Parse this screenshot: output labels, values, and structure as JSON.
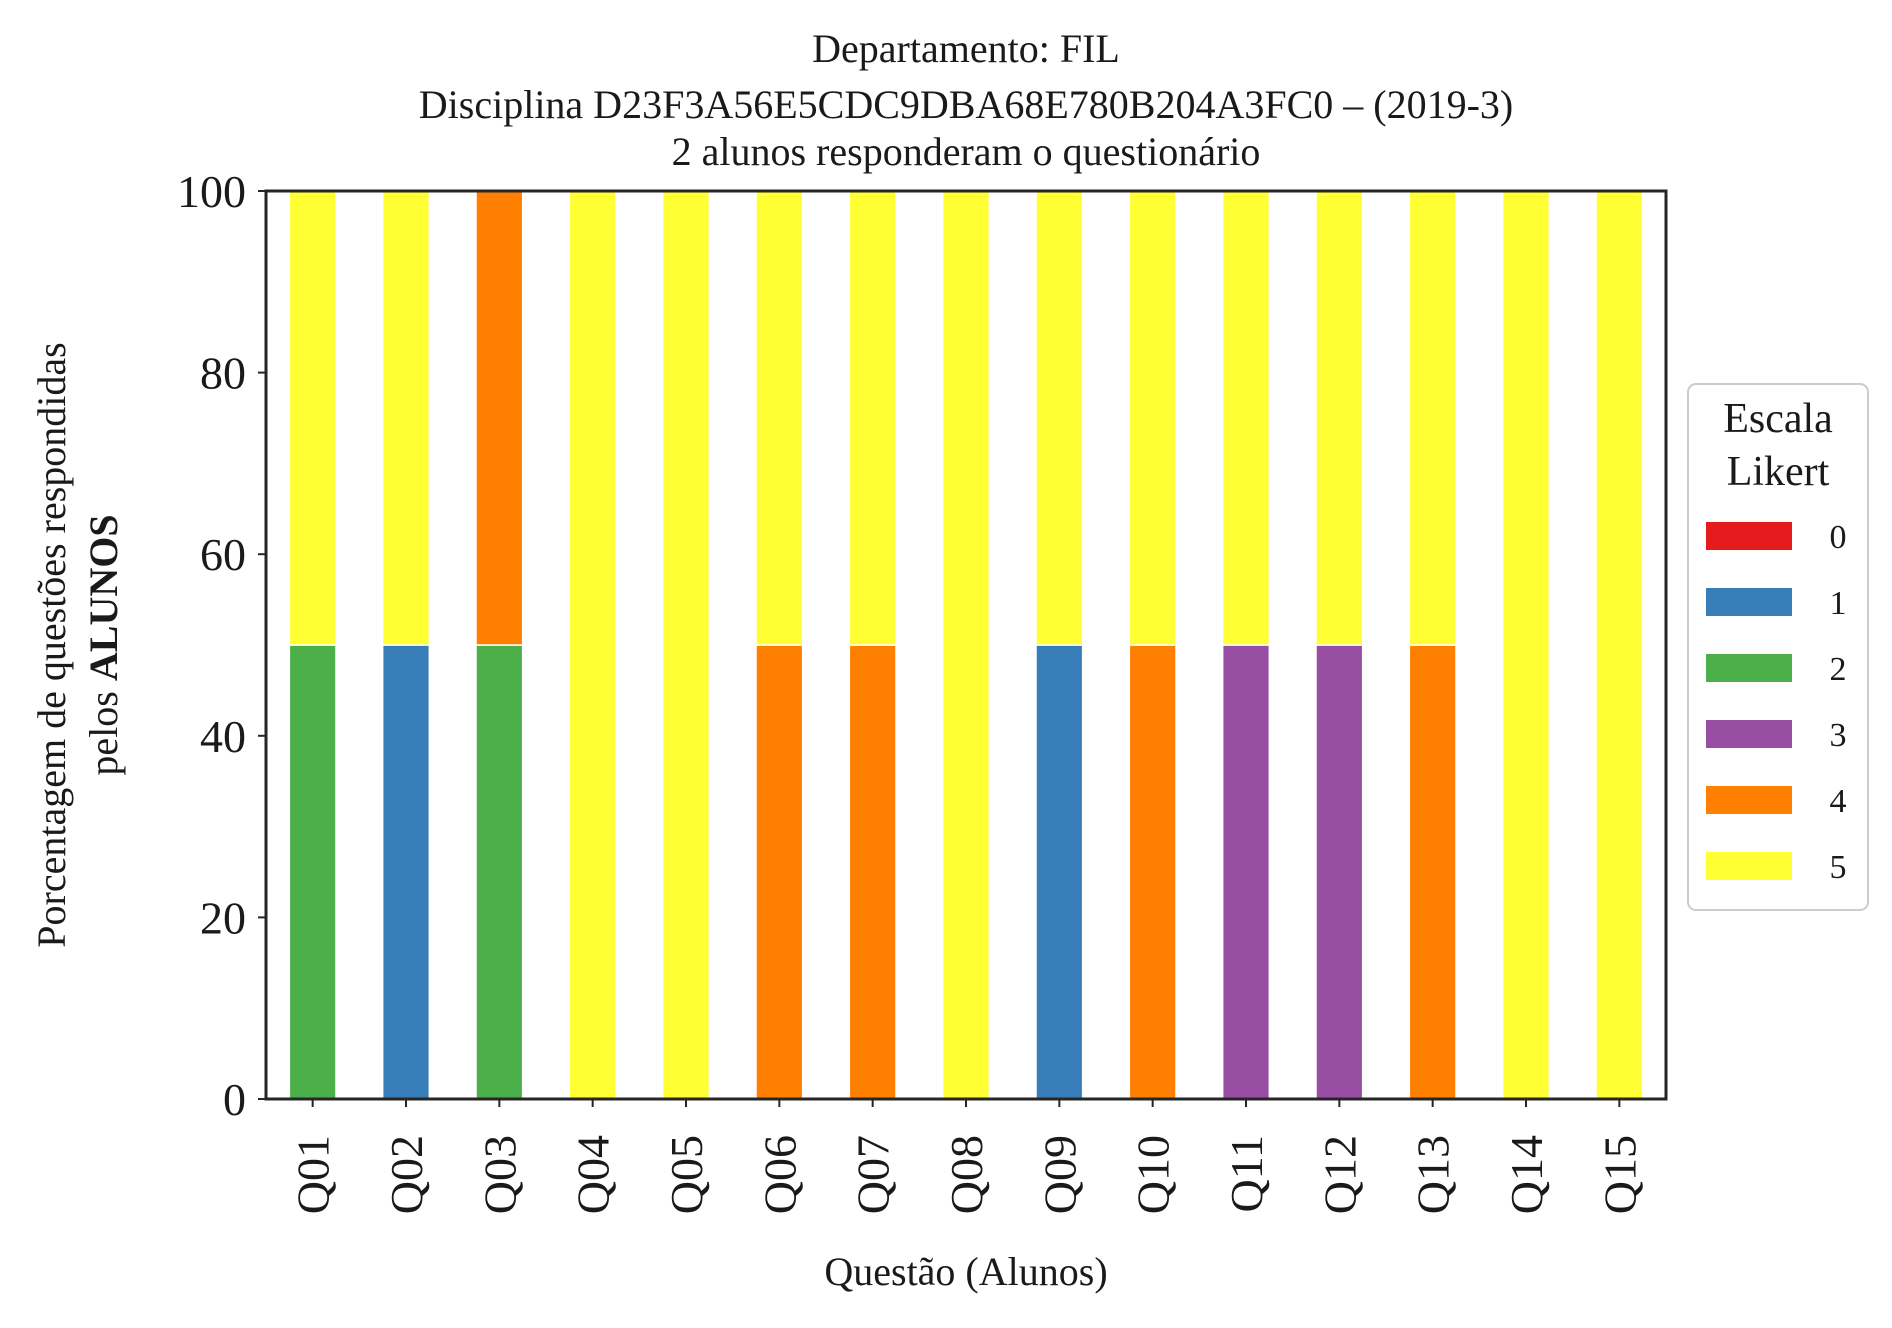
{
  "chart_data": {
    "type": "bar",
    "stacked": true,
    "title_lines": [
      "Departamento: FIL",
      "Disciplina D23F3A56E5CDC9DBA68E780B204A3FC0 – (2019-3)",
      "2 alunos responderam o questionário"
    ],
    "xlabel": "Questão (Alunos)",
    "ylabel_line1": "Porcentagem de questões respondidas",
    "ylabel_line2_prefix": "pelos ",
    "ylabel_line2_bold": "ALUNOS",
    "ylim": [
      0,
      100
    ],
    "yticks": [
      "0",
      "20",
      "40",
      "60",
      "80",
      "100"
    ],
    "grid": false,
    "legend_position": "right",
    "legend_title_lines": [
      "Escala",
      "Likert"
    ],
    "categories": [
      "Q01",
      "Q02",
      "Q03",
      "Q04",
      "Q05",
      "Q06",
      "Q07",
      "Q08",
      "Q09",
      "Q10",
      "Q11",
      "Q12",
      "Q13",
      "Q14",
      "Q15"
    ],
    "series": [
      {
        "name": "0",
        "color": "#e41a1c",
        "values": [
          0,
          0,
          0,
          0,
          0,
          0,
          0,
          0,
          0,
          0,
          0,
          0,
          0,
          0,
          0
        ]
      },
      {
        "name": "1",
        "color": "#377eb8",
        "values": [
          0,
          50,
          0,
          0,
          0,
          0,
          0,
          0,
          50,
          0,
          0,
          0,
          0,
          0,
          0
        ]
      },
      {
        "name": "2",
        "color": "#4daf4a",
        "values": [
          50,
          0,
          50,
          0,
          0,
          0,
          0,
          0,
          0,
          0,
          0,
          0,
          0,
          0,
          0
        ]
      },
      {
        "name": "3",
        "color": "#984ea3",
        "values": [
          0,
          0,
          0,
          0,
          0,
          0,
          0,
          0,
          0,
          0,
          50,
          50,
          0,
          0,
          0
        ]
      },
      {
        "name": "4",
        "color": "#ff7f00",
        "values": [
          0,
          0,
          50,
          0,
          0,
          50,
          50,
          0,
          0,
          50,
          0,
          0,
          50,
          0,
          0
        ]
      },
      {
        "name": "5",
        "color": "#ffff33",
        "values": [
          50,
          50,
          0,
          100,
          100,
          50,
          50,
          100,
          50,
          50,
          50,
          50,
          50,
          100,
          100
        ]
      }
    ]
  }
}
